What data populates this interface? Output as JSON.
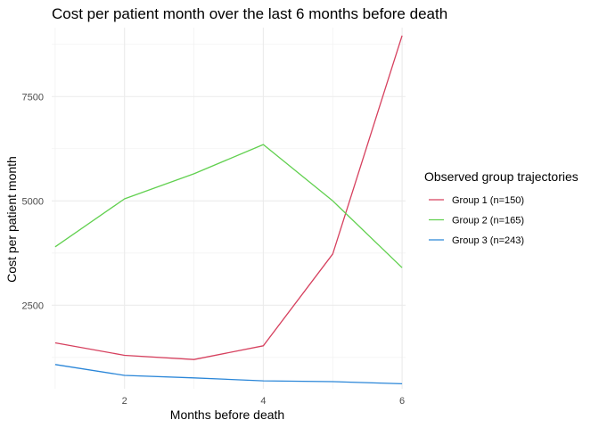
{
  "chart_data": {
    "type": "line",
    "title": "Cost per patient month over the last 6 months before death",
    "xlabel": "Months before death",
    "ylabel": "Cost per patient month",
    "x": [
      1,
      2,
      3,
      4,
      5,
      6
    ],
    "xlim": [
      0.95,
      6.05
    ],
    "ylim": [
      500,
      9150
    ],
    "x_ticks": [
      2,
      4,
      6
    ],
    "y_ticks": [
      2500,
      5000,
      7500
    ],
    "grid": true,
    "legend": {
      "title": "Observed group trajectories",
      "placement": "right"
    },
    "series": [
      {
        "name": "Group 1 (n=150)",
        "color": "#d6405e",
        "values": [
          1600,
          1300,
          1200,
          1530,
          3730,
          8960
        ]
      },
      {
        "name": "Group 2 (n=165)",
        "color": "#61d04f",
        "values": [
          3900,
          5050,
          5650,
          6350,
          5000,
          3400
        ]
      },
      {
        "name": "Group 3 (n=243)",
        "color": "#2a86d8",
        "values": [
          1080,
          820,
          760,
          690,
          670,
          620
        ]
      }
    ]
  }
}
